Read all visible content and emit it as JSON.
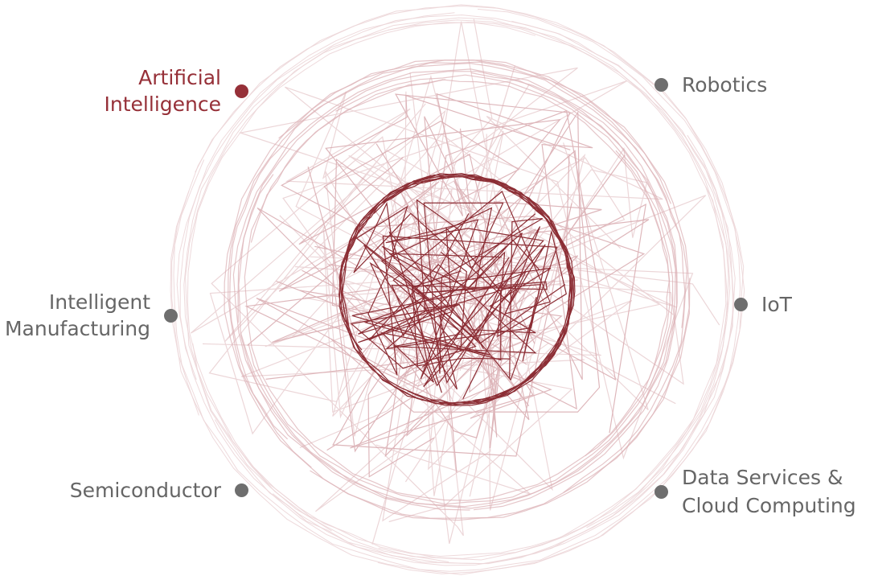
{
  "colors": {
    "accent": "#963038",
    "dot": "#6e6e6e",
    "label": "#666666",
    "outer_lines": "#e6c8cb",
    "mid_lines": "#d9a9ae",
    "core_lines": "#8c2e35"
  },
  "nodes": {
    "artificial_intelligence": {
      "line1": "Artificial",
      "line2": "Intelligence",
      "active": true
    },
    "robotics": {
      "label": "Robotics"
    },
    "intelligent_manufacturing": {
      "line1": "Intelligent",
      "line2": "Manufacturing"
    },
    "iot": {
      "label": "IoT"
    },
    "semiconductor": {
      "label": "Semiconductor"
    },
    "data_services": {
      "line1": "Data Services &",
      "line2": "Cloud Computing"
    }
  }
}
